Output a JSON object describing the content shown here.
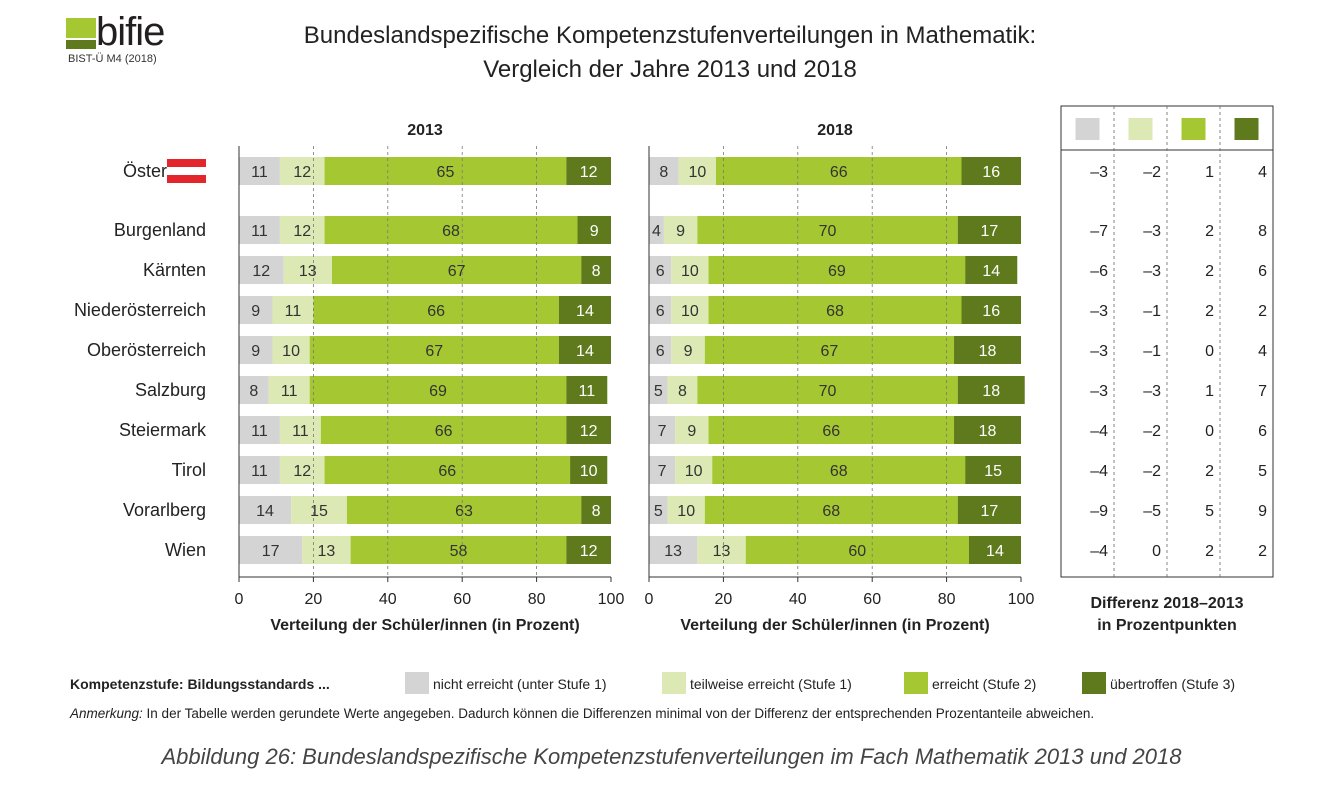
{
  "logo": {
    "name": "bifie",
    "subtitle": "BIST-Ü M4 (2018)"
  },
  "title": {
    "line1": "Bundeslandspezifische Kompetenzstufenverteilungen in Mathematik:",
    "line2": "Vergleich der Jahre 2013 und 2018"
  },
  "colors": {
    "nicht": "#d4d4d4",
    "teilweise": "#dde9b5",
    "erreicht": "#a5c832",
    "uebertroffen": "#5e7a1c"
  },
  "chart_data": {
    "type": "bar",
    "stacked": true,
    "orientation": "horizontal",
    "categories": [
      "Österreich",
      "Burgenland",
      "Kärnten",
      "Niederösterreich",
      "Oberösterreich",
      "Salzburg",
      "Steiermark",
      "Tirol",
      "Vorarlberg",
      "Wien"
    ],
    "panels": [
      {
        "title": "2013",
        "xlabel": "Verteilung der Schüler/innen (in Prozent)",
        "xlim": [
          0,
          100
        ],
        "ticks": [
          "0",
          "20",
          "40",
          "60",
          "80",
          "100"
        ],
        "series": [
          {
            "name": "nicht erreicht (unter Stufe 1)",
            "values": [
              11,
              11,
              12,
              9,
              9,
              8,
              11,
              11,
              14,
              17
            ]
          },
          {
            "name": "teilweise erreicht (Stufe 1)",
            "values": [
              12,
              12,
              13,
              11,
              10,
              11,
              11,
              12,
              15,
              13
            ]
          },
          {
            "name": "erreicht (Stufe 2)",
            "values": [
              65,
              68,
              67,
              66,
              67,
              69,
              66,
              66,
              63,
              58
            ]
          },
          {
            "name": "übertroffen (Stufe 3)",
            "values": [
              12,
              9,
              8,
              14,
              14,
              11,
              12,
              10,
              8,
              12
            ]
          }
        ]
      },
      {
        "title": "2018",
        "xlabel": "Verteilung der Schüler/innen (in Prozent)",
        "xlim": [
          0,
          100
        ],
        "ticks": [
          "0",
          "20",
          "40",
          "60",
          "80",
          "100"
        ],
        "series": [
          {
            "name": "nicht erreicht (unter Stufe 1)",
            "values": [
              8,
              4,
              6,
              6,
              6,
              5,
              7,
              7,
              5,
              13
            ]
          },
          {
            "name": "teilweise erreicht (Stufe 1)",
            "values": [
              10,
              9,
              10,
              10,
              9,
              8,
              9,
              10,
              10,
              13
            ]
          },
          {
            "name": "erreicht (Stufe 2)",
            "values": [
              66,
              70,
              69,
              68,
              67,
              70,
              66,
              68,
              68,
              60
            ]
          },
          {
            "name": "übertroffen (Stufe 3)",
            "values": [
              16,
              17,
              14,
              16,
              18,
              18,
              18,
              15,
              17,
              14
            ]
          }
        ]
      }
    ],
    "difference_table": {
      "title_line1": "Differenz 2018–2013",
      "title_line2": "in Prozentpunkten",
      "rows": [
        [
          "–3",
          "–2",
          "1",
          "4"
        ],
        [
          "–7",
          "–3",
          "2",
          "8"
        ],
        [
          "–6",
          "–3",
          "2",
          "6"
        ],
        [
          "–3",
          "–1",
          "2",
          "2"
        ],
        [
          "–3",
          "–1",
          "0",
          "4"
        ],
        [
          "–3",
          "–3",
          "1",
          "7"
        ],
        [
          "–4",
          "–2",
          "0",
          "6"
        ],
        [
          "–4",
          "–2",
          "2",
          "5"
        ],
        [
          "–9",
          "–5",
          "5",
          "9"
        ],
        [
          "–4",
          "0",
          "2",
          "2"
        ]
      ]
    }
  },
  "legend": {
    "label": "Kompetenzstufe: Bildungsstandards ...",
    "items": [
      "nicht erreicht (unter Stufe 1)",
      "teilweise erreicht (Stufe 1)",
      "erreicht (Stufe 2)",
      "übertroffen (Stufe 3)"
    ]
  },
  "note": {
    "prefix": "Anmerkung:",
    "text": " In der Tabelle werden gerundete Werte angegeben. Dadurch können die Differenzen minimal von der Differenz der entsprechenden Prozentanteile abweichen."
  },
  "caption": "Abbildung 26: Bundeslandspezifische Kompetenzstufenverteilungen im Fach Mathematik 2013 und 2018"
}
